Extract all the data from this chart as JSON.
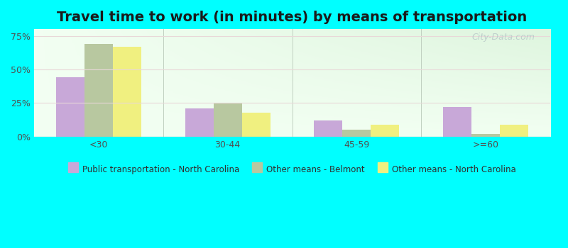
{
  "title": "Travel time to work (in minutes) by means of transportation",
  "categories": [
    "<30",
    "30-44",
    "45-59",
    ">=60"
  ],
  "series": {
    "Public transportation - North Carolina": [
      44,
      21,
      12,
      22
    ],
    "Other means - Belmont": [
      69,
      25,
      5,
      2
    ],
    "Other means - North Carolina": [
      67,
      18,
      9,
      9
    ]
  },
  "colors": {
    "Public transportation - North Carolina": "#c8a8d8",
    "Other means - Belmont": "#b8c8a0",
    "Other means - North Carolina": "#f0f080"
  },
  "ylim": [
    0,
    80
  ],
  "yticks": [
    0,
    25,
    50,
    75
  ],
  "ytick_labels": [
    "0%",
    "25%",
    "50%",
    "75%"
  ],
  "background_color": "#00ffff",
  "plot_bg_top_right": "#d8ede0",
  "plot_bg_bottom_left": "#f8fff8",
  "bar_width": 0.22,
  "title_fontsize": 14,
  "watermark": "City-Data.com"
}
